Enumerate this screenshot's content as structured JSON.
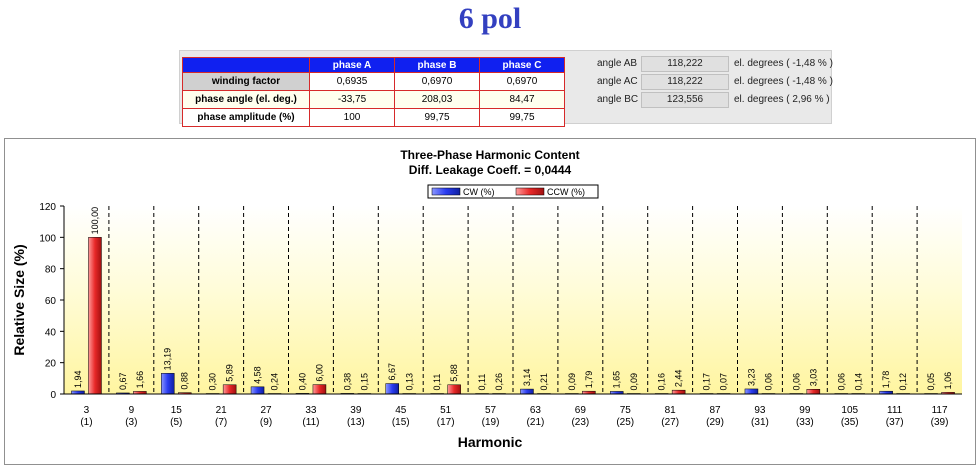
{
  "title": "6 pol",
  "table": {
    "headers": [
      "",
      "phase A",
      "phase B",
      "phase C"
    ],
    "rows": [
      {
        "label": "winding factor",
        "values": [
          "0,6935",
          "0,6970",
          "0,6970"
        ]
      },
      {
        "label": "phase angle (el. deg.)",
        "values": [
          "-33,75",
          "208,03",
          "84,47"
        ]
      },
      {
        "label": "phase amplitude (%)",
        "values": [
          "100",
          "99,75",
          "99,75"
        ]
      }
    ]
  },
  "angles": [
    {
      "label": "angle AB",
      "value": "118,222",
      "unit": "el. degrees ( -1,48 % )"
    },
    {
      "label": "angle AC",
      "value": "118,222",
      "unit": "el. degrees ( -1,48 % )"
    },
    {
      "label": "angle BC",
      "value": "123,556",
      "unit": "el. degrees ( 2,96 % )"
    }
  ],
  "chart_data": {
    "type": "bar",
    "title": "Three-Phase Harmonic Content",
    "subtitle": "Diff. Leakage Coeff. = 0,0444",
    "xlabel": "Harmonic",
    "ylabel": "Relative Size (%)",
    "ylim": [
      0,
      120
    ],
    "yticks": [
      0,
      20,
      40,
      60,
      80,
      100,
      120
    ],
    "categories": [
      "3",
      "9",
      "15",
      "21",
      "27",
      "33",
      "39",
      "45",
      "51",
      "57",
      "63",
      "69",
      "75",
      "81",
      "87",
      "93",
      "99",
      "105",
      "111",
      "117"
    ],
    "sublabels": [
      "(1)",
      "(3)",
      "(5)",
      "(7)",
      "(9)",
      "(11)",
      "(13)",
      "(15)",
      "(17)",
      "(19)",
      "(21)",
      "(23)",
      "(25)",
      "(27)",
      "(29)",
      "(31)",
      "(33)",
      "(35)",
      "(37)",
      "(39)"
    ],
    "series": [
      {
        "name": "CW (%)",
        "color": "#2a3cf0",
        "values": [
          1.94,
          0.67,
          13.19,
          0.3,
          4.58,
          0.4,
          0.38,
          6.67,
          0.11,
          0.11,
          3.14,
          0.09,
          1.65,
          0.16,
          0.17,
          3.23,
          0.06,
          0.06,
          1.78,
          0.05
        ],
        "labels": [
          "1,94",
          "0,67",
          "13,19",
          "0,30",
          "4,58",
          "0,40",
          "0,38",
          "6,67",
          "0,11",
          "0,11",
          "3,14",
          "0,09",
          "1,65",
          "0,16",
          "0,17",
          "3,23",
          "0,06",
          "0,06",
          "1,78",
          "0,05"
        ]
      },
      {
        "name": "CCW (%)",
        "color": "#e82828",
        "values": [
          100.0,
          1.66,
          0.88,
          5.89,
          0.24,
          6.0,
          0.15,
          0.13,
          5.88,
          0.26,
          0.21,
          1.79,
          0.09,
          2.44,
          0.07,
          0.06,
          3.03,
          0.14,
          0.12,
          1.06
        ],
        "labels": [
          "100,00",
          "1,66",
          "0,88",
          "5,89",
          "0,24",
          "6,00",
          "0,15",
          "0,13",
          "5,88",
          "0,26",
          "0,21",
          "1,79",
          "0,09",
          "2,44",
          "0,07",
          "0,06",
          "3,03",
          "0,14",
          "0,12",
          "1,06"
        ]
      }
    ],
    "legend": "top-center",
    "grid": "vertical dashed"
  }
}
